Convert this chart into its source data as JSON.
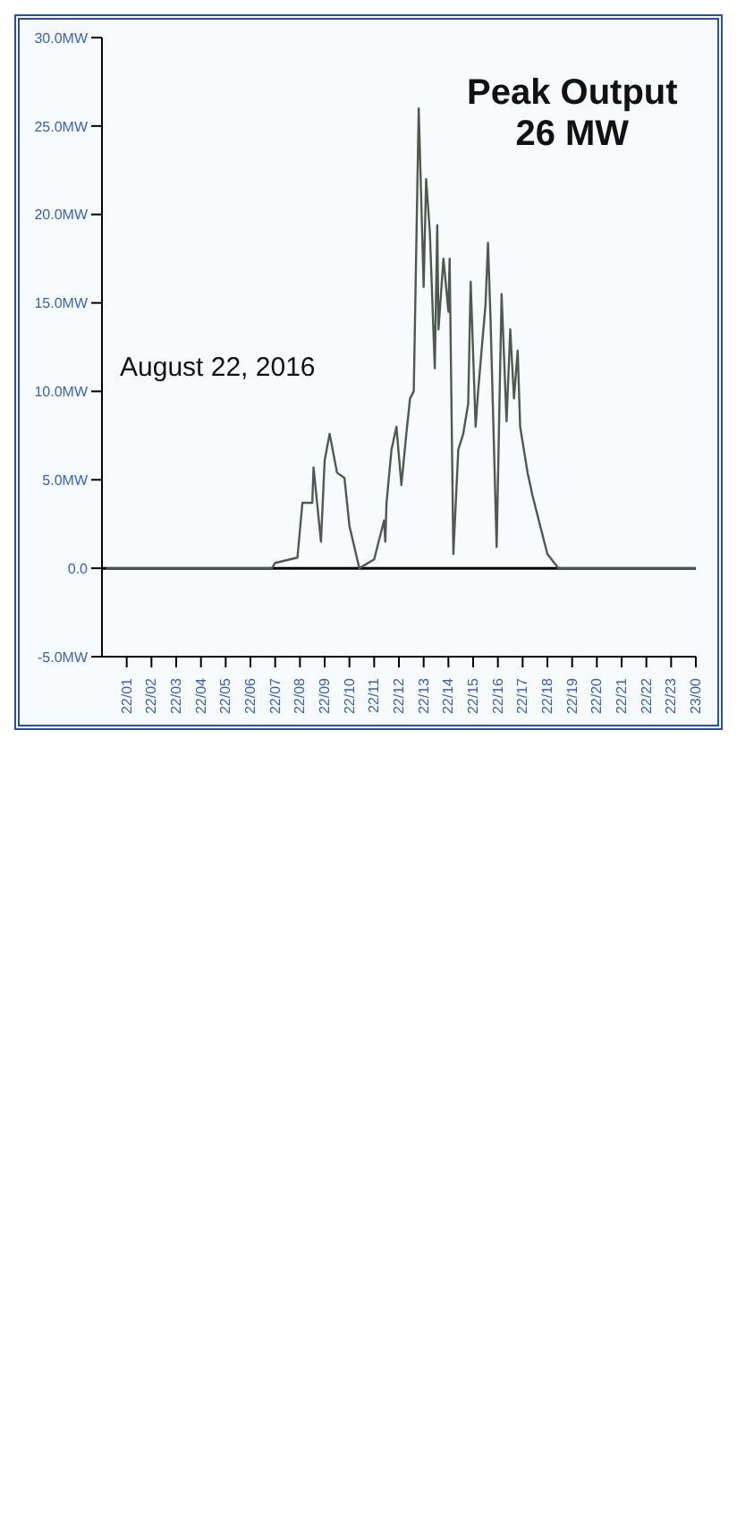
{
  "chart_data": {
    "type": "line",
    "annotations": [
      "Peak Output\n26 MW",
      "August 22, 2016"
    ],
    "x": [
      "2016-08-22T00:12",
      "2016-08-22T06:52",
      "2016-08-22T07:00",
      "2016-08-22T07:54",
      "2016-08-22T08:06",
      "2016-08-22T08:30",
      "2016-08-22T08:33",
      "2016-08-22T08:51",
      "2016-08-22T09:00",
      "2016-08-22T09:12",
      "2016-08-22T09:30",
      "2016-08-22T09:48",
      "2016-08-22T10:00",
      "2016-08-22T10:24",
      "2016-08-22T11:00",
      "2016-08-22T11:24",
      "2016-08-22T11:27",
      "2016-08-22T11:30",
      "2016-08-22T11:42",
      "2016-08-22T11:54",
      "2016-08-22T12:06",
      "2016-08-22T12:18",
      "2016-08-22T12:27",
      "2016-08-22T12:36",
      "2016-08-22T12:48",
      "2016-08-22T13:00",
      "2016-08-22T13:06",
      "2016-08-22T13:15",
      "2016-08-22T13:27",
      "2016-08-22T13:33",
      "2016-08-22T13:36",
      "2016-08-22T13:48",
      "2016-08-22T14:00",
      "2016-08-22T14:03",
      "2016-08-22T14:12",
      "2016-08-22T14:24",
      "2016-08-22T14:36",
      "2016-08-22T14:48",
      "2016-08-22T14:54",
      "2016-08-22T15:06",
      "2016-08-22T15:12",
      "2016-08-22T15:30",
      "2016-08-22T15:36",
      "2016-08-22T15:42",
      "2016-08-22T15:57",
      "2016-08-22T16:09",
      "2016-08-22T16:21",
      "2016-08-22T16:30",
      "2016-08-22T16:39",
      "2016-08-22T16:48",
      "2016-08-22T16:54",
      "2016-08-22T17:12",
      "2016-08-22T17:24",
      "2016-08-22T18:00",
      "2016-08-22T18:27",
      "2016-08-23T00:00"
    ],
    "series": [
      {
        "color": "#4d5a4d",
        "values": [
          0,
          0,
          0.3,
          0.6,
          3.7,
          3.7,
          5.7,
          1.5,
          6.1,
          7.6,
          5.4,
          5.1,
          2.4,
          0,
          0.5,
          2.7,
          1.5,
          3.7,
          6.7,
          8,
          4.7,
          7.6,
          9.6,
          10,
          26,
          15.9,
          22,
          19,
          11.3,
          19.4,
          13.5,
          17.5,
          14.5,
          17.5,
          0.8,
          6.7,
          7.6,
          9.3,
          16.2,
          8,
          10,
          14.9,
          18.4,
          14.2,
          1.2,
          15.5,
          8.3,
          13.5,
          9.6,
          12.3,
          8,
          5.4,
          4.1,
          0.8,
          0,
          0
        ]
      }
    ],
    "xlim": [
      "2016-08-22T00:00",
      "2016-08-23T00:00"
    ],
    "xticks": [
      {
        "value": "2016-08-22T01:00",
        "label": "22/01"
      },
      {
        "value": "2016-08-22T02:00",
        "label": "22/02"
      },
      {
        "value": "2016-08-22T03:00",
        "label": "22/03"
      },
      {
        "value": "2016-08-22T04:00",
        "label": "22/04"
      },
      {
        "value": "2016-08-22T05:00",
        "label": "22/05"
      },
      {
        "value": "2016-08-22T06:00",
        "label": "22/06"
      },
      {
        "value": "2016-08-22T07:00",
        "label": "22/07"
      },
      {
        "value": "2016-08-22T08:00",
        "label": "22/08"
      },
      {
        "value": "2016-08-22T09:00",
        "label": "22/09"
      },
      {
        "value": "2016-08-22T10:00",
        "label": "22/10"
      },
      {
        "value": "2016-08-22T11:00",
        "label": "22/11"
      },
      {
        "value": "2016-08-22T12:00",
        "label": "22/12"
      },
      {
        "value": "2016-08-22T13:00",
        "label": "22/13"
      },
      {
        "value": "2016-08-22T14:00",
        "label": "22/14"
      },
      {
        "value": "2016-08-22T15:00",
        "label": "22/15"
      },
      {
        "value": "2016-08-22T16:00",
        "label": "22/16"
      },
      {
        "value": "2016-08-22T17:00",
        "label": "22/17"
      },
      {
        "value": "2016-08-22T18:00",
        "label": "22/18"
      },
      {
        "value": "2016-08-22T19:00",
        "label": "22/19"
      },
      {
        "value": "2016-08-22T20:00",
        "label": "22/20"
      },
      {
        "value": "2016-08-22T21:00",
        "label": "22/21"
      },
      {
        "value": "2016-08-22T22:00",
        "label": "22/22"
      },
      {
        "value": "2016-08-22T23:00",
        "label": "22/23"
      },
      {
        "value": "2016-08-23T00:00",
        "label": "23/00"
      }
    ],
    "ylim": [
      -5,
      30
    ],
    "yticks": [
      {
        "value": -5,
        "label": "-5.0MW"
      },
      {
        "value": 0,
        "label": "0.0"
      },
      {
        "value": 5,
        "label": "5.0MW"
      },
      {
        "value": 10,
        "label": "10.0MW"
      },
      {
        "value": 15,
        "label": "15.0MW"
      },
      {
        "value": 20,
        "label": "20.0MW"
      },
      {
        "value": 25,
        "label": "25.0MW"
      },
      {
        "value": 30,
        "label": "30.0MW"
      }
    ],
    "ref_lines": [
      {
        "axis": "y",
        "value": 0,
        "color": "#000000"
      }
    ],
    "grid": false,
    "legend": false,
    "marker": "none",
    "line_style": "solid"
  }
}
